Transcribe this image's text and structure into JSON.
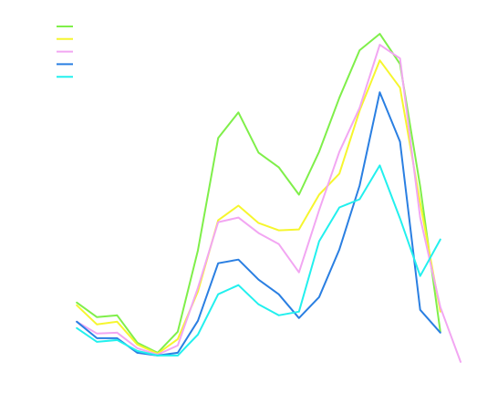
{
  "chart_data": {
    "type": "line",
    "title": "",
    "xlabel": "",
    "ylabel": "",
    "grid": false,
    "legend_position": "top-left",
    "x": [
      1,
      2,
      3,
      4,
      5,
      6,
      7,
      8,
      9,
      10,
      11,
      12,
      13,
      14,
      15,
      16,
      17,
      18,
      19,
      20
    ],
    "xlim": [
      0,
      20
    ],
    "ylim": [
      0,
      430
    ],
    "series": [
      {
        "color": "#7fef4a",
        "values": [
          99,
          83,
          85,
          55,
          44,
          67,
          156,
          279,
          307,
          263,
          247,
          217,
          264,
          323,
          375,
          393,
          360,
          226,
          67,
          null
        ]
      },
      {
        "color": "#f6f62e",
        "values": [
          96,
          75,
          78,
          53,
          43,
          59,
          111,
          189,
          205,
          186,
          178,
          179,
          217,
          240,
          309,
          364,
          334,
          208,
          89,
          null
        ]
      },
      {
        "color": "#f2a6f2",
        "values": [
          78,
          65,
          66,
          49,
          42,
          52,
          115,
          187,
          192,
          175,
          163,
          132,
          200,
          264,
          312,
          381,
          366,
          192,
          94,
          34
        ]
      },
      {
        "color": "#2a7fe2",
        "values": [
          78,
          60,
          60,
          44,
          41,
          44,
          79,
          142,
          146,
          124,
          108,
          82,
          105,
          157,
          227,
          329,
          275,
          91,
          66,
          null
        ]
      },
      {
        "color": "#22f0ee",
        "values": [
          71,
          56,
          58,
          46,
          41,
          41,
          64,
          108,
          118,
          97,
          85,
          89,
          166,
          203,
          212,
          249,
          191,
          128,
          168,
          null
        ]
      }
    ]
  }
}
